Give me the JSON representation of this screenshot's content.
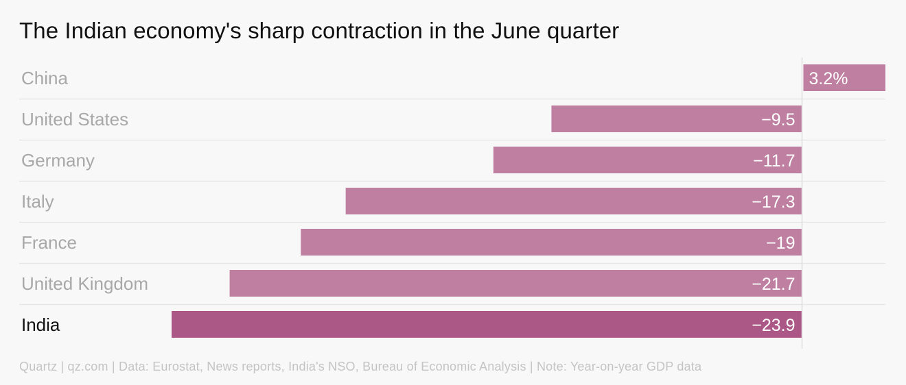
{
  "title": "The Indian economy's sharp contraction in the June quarter",
  "footer": "Quartz | qz.com | Data: Eurostat, News reports, India's NSO, Bureau of Economic Analysis | Note: Year-on-year GDP data",
  "colors": {
    "bar": "#be7fa1",
    "highlight_bar": "#ab5886",
    "label": "#a8a8a8",
    "highlight_label": "#111111",
    "gridline": "#e6e6e6",
    "zero_line": "#dddddd"
  },
  "chart_data": {
    "type": "bar",
    "orientation": "horizontal",
    "title": "The Indian economy's sharp contraction in the June quarter",
    "categories": [
      "China",
      "United States",
      "Germany",
      "Italy",
      "France",
      "United Kingdom",
      "India"
    ],
    "values": [
      3.2,
      -9.5,
      -11.7,
      -17.3,
      -19,
      -21.7,
      -23.9
    ],
    "value_labels": [
      "3.2%",
      "−9.5",
      "−11.7",
      "−17.3",
      "−19",
      "−21.7",
      "−23.9"
    ],
    "highlight": "India",
    "xlim": [
      -23.9,
      3.2
    ],
    "xlabel": "",
    "ylabel": "",
    "grid": false,
    "legend": "none"
  }
}
